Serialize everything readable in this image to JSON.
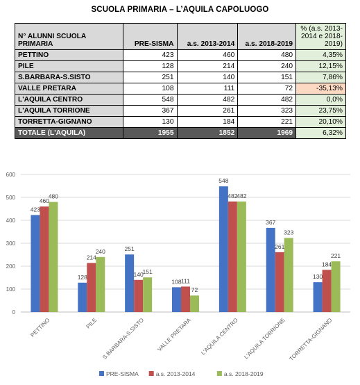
{
  "title": "SCUOLA PRIMARIA – L’AQUILA CAPOLUOGO",
  "table": {
    "headers": [
      "N° ALUNNI SCUOLA PRIMARIA",
      "PRE-SISMA",
      "a.s. 2013-2014",
      "a.s. 2018-2019",
      "% (a.s. 2013-2014 e 2018-2019)"
    ],
    "rows": [
      {
        "name": "PETTINO",
        "pre": "423",
        "y1": "460",
        "y2": "480",
        "pct": "4,35%"
      },
      {
        "name": "PILE",
        "pre": "128",
        "y1": "214",
        "y2": "240",
        "pct": "12,15%"
      },
      {
        "name": "S.BARBARA-S.SISTO",
        "pre": "251",
        "y1": "140",
        "y2": "151",
        "pct": "7,86%"
      },
      {
        "name": "VALLE PRETARA",
        "pre": "108",
        "y1": "111",
        "y2": "72",
        "pct": "-35,13%"
      },
      {
        "name": "L'AQUILA CENTRO",
        "pre": "548",
        "y1": "482",
        "y2": "482",
        "pct": "0,0%"
      },
      {
        "name": "L'AQUILA TORRIONE",
        "pre": "367",
        "y1": "261",
        "y2": "323",
        "pct": "23,75%"
      },
      {
        "name": "TORRETTA-GIGNANO",
        "pre": "130",
        "y1": "184",
        "y2": "221",
        "pct": "20,10%"
      }
    ],
    "total": {
      "name": "TOTALE (L'AQUILA)",
      "pre": "1955",
      "y1": "1852",
      "y2": "1969",
      "pct": "6,32%"
    }
  },
  "chart_data": {
    "type": "bar",
    "categories": [
      "PETTINO",
      "PILE",
      "S.BARBARA-S.SISTO",
      "VALLE PRETARA",
      "L'AQUILA CENTRO",
      "L'AQUILA TORRIONE",
      "TORRETTA-GIGNANO"
    ],
    "series": [
      {
        "name": "PRE-SISMA",
        "values": [
          423,
          128,
          251,
          108,
          548,
          367,
          130
        ],
        "color": "#4472c4"
      },
      {
        "name": "a.s. 2013-2014",
        "values": [
          460,
          214,
          140,
          111,
          482,
          261,
          184
        ],
        "color": "#c0504d"
      },
      {
        "name": "a.s. 2018-2019",
        "values": [
          480,
          240,
          151,
          72,
          482,
          323,
          221
        ],
        "color": "#9bbb59"
      }
    ],
    "ylim": [
      0,
      600
    ],
    "yticks": [
      0,
      100,
      200,
      300,
      400,
      500,
      600
    ],
    "grid": true,
    "legend": "bottom",
    "data_labels": true
  }
}
